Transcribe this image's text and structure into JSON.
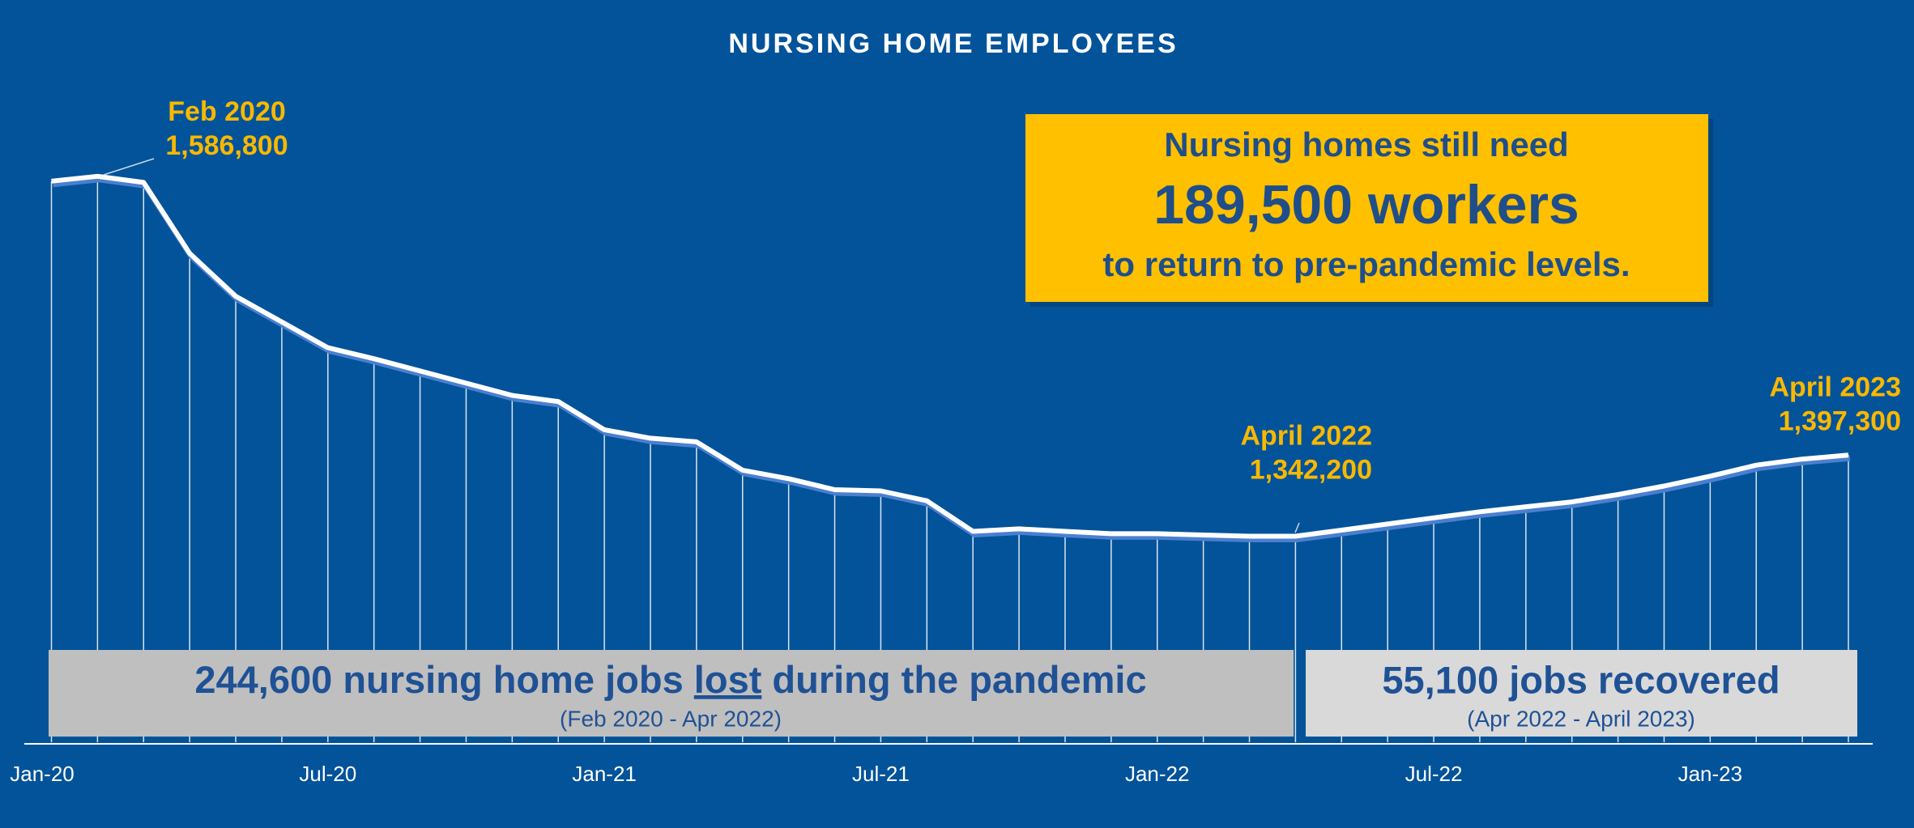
{
  "chart_data": {
    "type": "line",
    "title": "NURSING HOME EMPLOYEES",
    "categories": [
      "Jan-20",
      null,
      null,
      null,
      null,
      null,
      "Jul-20",
      null,
      null,
      null,
      null,
      null,
      "Jan-21",
      null,
      null,
      null,
      null,
      null,
      "Jul-21",
      null,
      null,
      null,
      null,
      null,
      "Jan-22",
      null,
      null,
      null,
      null,
      null,
      "Jul-22",
      null,
      null,
      null,
      null,
      null,
      "Jan-23",
      null,
      null,
      null
    ],
    "series": [
      {
        "name": "Nursing home employees",
        "color": "#ffffff",
        "values": [
          1583500,
          1586800,
          1582600,
          1534400,
          1505300,
          1487800,
          1470300,
          1462800,
          1454500,
          1446200,
          1437900,
          1433700,
          1414600,
          1408800,
          1406300,
          1387100,
          1381300,
          1373800,
          1373000,
          1366300,
          1345500,
          1347200,
          1345500,
          1343900,
          1343900,
          1343000,
          1342200,
          1342200,
          1346300,
          1350500,
          1354700,
          1358800,
          1362200,
          1365500,
          1370500,
          1376300,
          1383000,
          1390500,
          1394600,
          1397300
        ],
        "value_labels": [
          null,
          "1,586,800",
          null,
          null,
          null,
          null,
          null,
          null,
          null,
          null,
          null,
          null,
          null,
          null,
          null,
          null,
          null,
          null,
          null,
          null,
          null,
          null,
          null,
          null,
          null,
          null,
          null,
          "1,342,200",
          null,
          null,
          null,
          null,
          null,
          null,
          null,
          null,
          null,
          null,
          null,
          "1,397,300"
        ],
        "point_labels": [
          null,
          "Feb 2020",
          null,
          null,
          null,
          null,
          null,
          null,
          null,
          null,
          null,
          null,
          null,
          null,
          null,
          null,
          null,
          null,
          null,
          null,
          null,
          null,
          null,
          null,
          null,
          null,
          null,
          "April 2022",
          null,
          null,
          null,
          null,
          null,
          null,
          null,
          null,
          null,
          null,
          null,
          "April 2023"
        ]
      }
    ],
    "ylim": [
      1200000,
      1700000
    ],
    "callout": {
      "line1": "Nursing homes still need",
      "line2": "189,500 workers",
      "line3": "to return to pre-pandemic levels."
    },
    "bands": [
      {
        "text_before": "244,600 nursing home jobs ",
        "text_emphasis": "lost",
        "text_after": " during the pandemic",
        "subtext": "(Feb 2020 - Apr 2022)"
      },
      {
        "text": "55,100 jobs recovered",
        "subtext": "(Apr 2022 - April 2023)"
      }
    ]
  }
}
